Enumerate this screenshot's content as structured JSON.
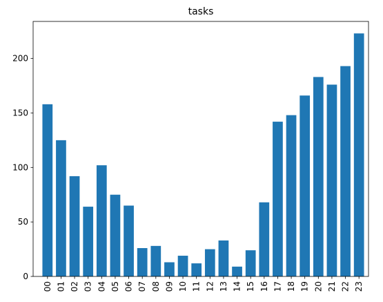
{
  "chart_data": {
    "type": "bar",
    "title": "tasks",
    "xlabel": "",
    "ylabel": "",
    "categories": [
      "00",
      "01",
      "02",
      "03",
      "04",
      "05",
      "06",
      "07",
      "08",
      "09",
      "10",
      "11",
      "12",
      "13",
      "14",
      "15",
      "16",
      "17",
      "18",
      "19",
      "20",
      "21",
      "22",
      "23"
    ],
    "values": [
      158,
      125,
      92,
      64,
      102,
      75,
      65,
      26,
      28,
      13,
      19,
      12,
      25,
      33,
      9,
      24,
      68,
      142,
      148,
      166,
      183,
      176,
      193,
      223
    ],
    "ylim": [
      0,
      234
    ],
    "yticks": [
      0,
      50,
      100,
      150,
      200
    ],
    "grid": false,
    "bar_color": "#1f77b4",
    "x_tick_rotation": 90
  }
}
